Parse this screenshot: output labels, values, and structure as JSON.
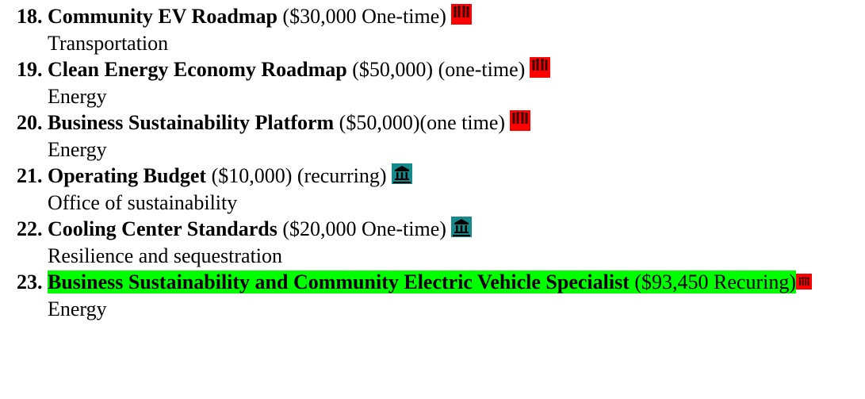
{
  "items": [
    {
      "number": "18.",
      "title": "Community EV Roadmap",
      "detail": "($30,000 One-time)",
      "category": "Transportation"
    },
    {
      "number": "19.",
      "title": "Clean Energy Economy Roadmap",
      "detail": "($50,000) (one-time)",
      "category": "Energy"
    },
    {
      "number": "20.",
      "title": "Business Sustainability Platform",
      "detail": "($50,000)(one time)",
      "category": "Energy"
    },
    {
      "number": "21.",
      "title": "Operating Budget",
      "detail": "($10,000) (recurring)",
      "category": "Office of sustainability"
    },
    {
      "number": "22.",
      "title": "Cooling Center Standards",
      "detail": "($20,000 One-time)",
      "category": "Resilience and sequestration"
    },
    {
      "number": "23.",
      "title": "Business Sustainability and Community Electric Vehicle Specialist",
      "detail": "($93,450 Recuring)",
      "category": "Energy"
    }
  ]
}
